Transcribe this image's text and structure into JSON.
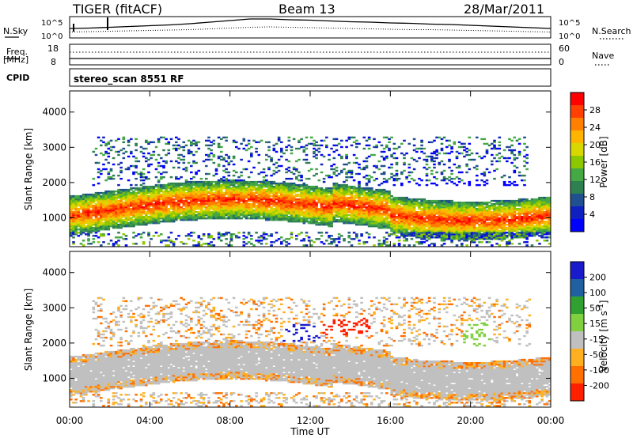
{
  "header": {
    "radar": "TIGER (fitACF)",
    "beam": "Beam 13",
    "date": "28/Mar/2011"
  },
  "panels": {
    "nsky_label": "N.Sky",
    "nsearch_label": "N.Search",
    "nsky_ticks": [
      "10^5",
      "10^0"
    ],
    "nsearch_ticks": [
      "10^5",
      "10^0"
    ],
    "freq_label_1": "Freq.",
    "freq_label_2": "[MHz]",
    "freq_ticks": [
      "18",
      "8"
    ],
    "nave_label": "Nave",
    "nave_ticks": [
      "60",
      "0"
    ],
    "cpid_label": "CPID",
    "cpid_value": "stereo_scan 8551 RF"
  },
  "colorbars": {
    "power": {
      "label": "Power [dB]",
      "ticks": [
        "28",
        "24",
        "20",
        "16",
        "12",
        "8",
        "4"
      ],
      "colors": [
        "#ff0000",
        "#ff4000",
        "#ff8000",
        "#ffb400",
        "#d8d800",
        "#8cc800",
        "#44a844",
        "#2f8050",
        "#205090",
        "#1020c0",
        "#0000ff"
      ]
    },
    "velocity": {
      "label": "Velocity [m s",
      "label_sup": "-1",
      "label_end": "]",
      "ticks": [
        "200",
        "100",
        "50",
        "15",
        "-15",
        "-50",
        "-100",
        "-200"
      ],
      "colors": [
        "#1a1acd",
        "#2060a0",
        "#30a030",
        "#80d040",
        "#c0c0c0",
        "#ffb020",
        "#ff7000",
        "#ff2000"
      ]
    }
  },
  "chart_data": [
    {
      "type": "line",
      "title": "N.Sky / N.Search",
      "y_scale": "log",
      "ylim": [
        "10^0",
        "10^5"
      ],
      "x_hours": [
        0,
        1,
        2,
        3,
        4,
        5,
        6,
        7,
        8,
        9,
        10,
        11,
        12,
        13,
        14,
        15,
        16,
        17,
        18,
        19,
        20,
        21,
        22,
        23,
        24
      ],
      "series": [
        {
          "name": "N.Sky",
          "values_log10": [
            2.2,
            2.3,
            2.5,
            2.7,
            2.9,
            3.1,
            3.4,
            3.8,
            4.2,
            4.6,
            4.6,
            4.4,
            4.3,
            4.1,
            3.9,
            3.8,
            3.6,
            3.5,
            3.3,
            3.2,
            3.0,
            2.8,
            2.6,
            2.4,
            2.2
          ]
        },
        {
          "name": "N.Search",
          "values_log10": [
            1.3,
            1.4,
            1.5,
            1.6,
            1.7,
            1.8,
            1.9,
            2.1,
            2.3,
            2.5,
            2.6,
            2.5,
            2.4,
            2.3,
            2.2,
            2.1,
            2.0,
            1.9,
            1.9,
            1.8,
            1.7,
            1.6,
            1.5,
            1.4,
            1.3
          ]
        }
      ]
    },
    {
      "type": "line",
      "title": "Freq. / Nave",
      "x_hours": [
        0,
        24
      ],
      "series": [
        {
          "name": "Freq. [MHz]",
          "values": [
            12,
            12
          ]
        },
        {
          "name": "Nave",
          "values": [
            28,
            28
          ]
        }
      ]
    },
    {
      "type": "heatmap",
      "title": "Power [dB]",
      "xlabel": "Time UT",
      "ylabel": "Slant Range [km]",
      "xlim_hours": [
        0,
        24
      ],
      "x_tick_labels": [
        "00:00",
        "04:00",
        "08:00",
        "12:00",
        "16:00",
        "20:00",
        "00:00"
      ],
      "ylim_km": [
        180,
        4600
      ],
      "y_ticks": [
        1000,
        2000,
        3000,
        4000
      ],
      "features": [
        {
          "name": "main band",
          "hours": [
            0,
            24
          ],
          "range_km": [
            900,
            2100
          ],
          "power_db": [
            16,
            30
          ]
        },
        {
          "name": "diffuse upper echoes",
          "hours": [
            2,
            22
          ],
          "range_km": [
            2100,
            3300
          ],
          "power_db": [
            4,
            12
          ]
        },
        {
          "name": "ionospheric trough",
          "hours": [
            13,
            16
          ],
          "range_km": [
            1200,
            1600
          ],
          "power_db": [
            24,
            30
          ]
        }
      ]
    },
    {
      "type": "heatmap",
      "title": "Velocity [m/s]",
      "xlabel": "Time UT",
      "ylabel": "Slant Range [km]",
      "xlim_hours": [
        0,
        24
      ],
      "x_tick_labels": [
        "00:00",
        "04:00",
        "08:00",
        "12:00",
        "16:00",
        "20:00",
        "00:00"
      ],
      "ylim_km": [
        180,
        4600
      ],
      "y_ticks": [
        1000,
        2000,
        3000,
        4000
      ],
      "features": [
        {
          "name": "ground scatter",
          "hours": [
            0,
            24
          ],
          "range_km": [
            700,
            1800
          ],
          "velocity_ms": [
            -15,
            15
          ]
        },
        {
          "name": "receding patch",
          "hours": [
            12,
            15
          ],
          "range_km": [
            2200,
            2700
          ],
          "velocity_ms": [
            -200,
            -100
          ]
        },
        {
          "name": "approaching patch",
          "hours": [
            10.5,
            12.5
          ],
          "range_km": [
            2000,
            2500
          ],
          "velocity_ms": [
            100,
            200
          ]
        }
      ]
    }
  ],
  "axes": {
    "ylabel": "Slant Range [km]",
    "xlabel": "Time UT",
    "x_tick_labels": [
      "00:00",
      "04:00",
      "08:00",
      "12:00",
      "16:00",
      "20:00",
      "00:00"
    ],
    "y_tick_labels": [
      "1000",
      "2000",
      "3000",
      "4000"
    ]
  }
}
